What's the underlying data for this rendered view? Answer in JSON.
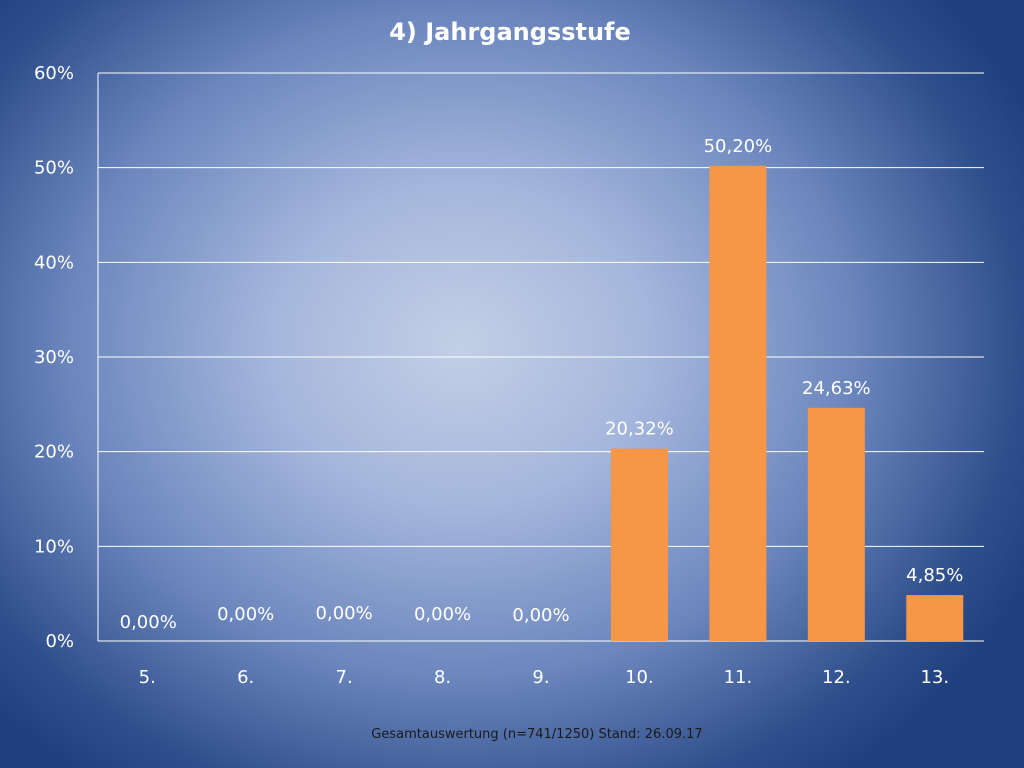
{
  "chart_data": {
    "type": "bar",
    "title": "4) Jahrgangsstufe",
    "categories": [
      "5.",
      "6.",
      "7.",
      "8.",
      "9.",
      "10.",
      "11.",
      "12.",
      "13."
    ],
    "values": [
      0.0,
      0.0,
      0.0,
      0.0,
      0.0,
      20.32,
      50.2,
      24.63,
      4.85
    ],
    "data_labels": [
      "0,00%",
      "0,00%",
      "0,00%",
      "0,00%",
      "0,00%",
      "20,32%",
      "50,20%",
      "24,63%",
      "4,85%"
    ],
    "y_ticks": [
      "0%",
      "10%",
      "20%",
      "30%",
      "40%",
      "50%",
      "60%"
    ],
    "ylim": [
      0,
      60
    ],
    "grid": true,
    "legend": "none",
    "bar_color": "#f79646",
    "footer": "Gesamtauswertung (n=741/1250) Stand: 26.09.17"
  }
}
